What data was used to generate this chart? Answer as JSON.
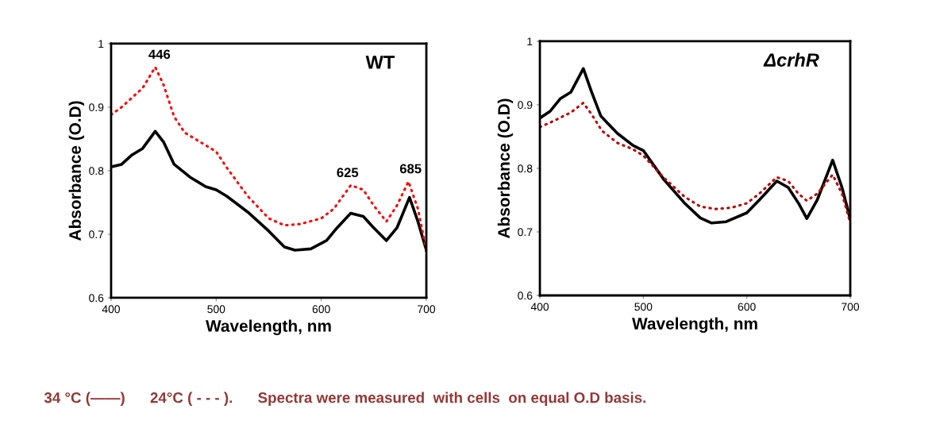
{
  "chart_data": [
    {
      "type": "line",
      "xlabel": "Wavelength, nm",
      "ylabel": "Absorbance (O.D)",
      "xlim": [
        400,
        700
      ],
      "xticks": [
        400,
        500,
        600,
        700
      ],
      "ylim": [
        0.6,
        1
      ],
      "yticks": [
        0.6,
        0.7,
        0.8,
        0.9,
        {
          "value": 1,
          "label": "1"
        }
      ],
      "grid": false,
      "legend": false,
      "marker": "none",
      "series": [
        {
          "color": "#000000",
          "line_style": "solid",
          "x": [
            400,
            410,
            420,
            430,
            442,
            450,
            460,
            475,
            490,
            500,
            510,
            530,
            550,
            565,
            575,
            590,
            605,
            615,
            628,
            640,
            650,
            662,
            672,
            684,
            692,
            700
          ],
          "values": [
            0.806,
            0.81,
            0.825,
            0.835,
            0.862,
            0.845,
            0.81,
            0.79,
            0.775,
            0.77,
            0.76,
            0.735,
            0.705,
            0.68,
            0.675,
            0.677,
            0.69,
            0.71,
            0.733,
            0.728,
            0.71,
            0.69,
            0.71,
            0.758,
            0.72,
            0.675
          ]
        },
        {
          "color": "#ff0000",
          "line_style": "dotted",
          "x": [
            400,
            410,
            420,
            430,
            442,
            450,
            460,
            470,
            490,
            500,
            510,
            530,
            550,
            565,
            580,
            600,
            612,
            628,
            640,
            650,
            662,
            672,
            683,
            692,
            700
          ],
          "values": [
            0.888,
            0.9,
            0.915,
            0.93,
            0.963,
            0.935,
            0.885,
            0.86,
            0.84,
            0.83,
            0.805,
            0.76,
            0.725,
            0.714,
            0.716,
            0.725,
            0.74,
            0.777,
            0.77,
            0.745,
            0.72,
            0.745,
            0.783,
            0.74,
            0.675
          ]
        }
      ],
      "annotations": [
        {
          "text": "446",
          "x": 446,
          "y": 0.963
        },
        {
          "text": "625",
          "x": 625,
          "y": 0.777
        },
        {
          "text": "685",
          "x": 685,
          "y": 0.783
        },
        "WT",
        "34 °C (——)      24°C ( - - - ).      Spectra were measured  with cells  on equal O.D basis."
      ]
    },
    {
      "type": "line",
      "xlabel": "Wavelength, nm",
      "ylabel": "Absorbance (O.D)",
      "xlim": [
        400,
        700
      ],
      "xticks": [
        400,
        500,
        600,
        700
      ],
      "ylim": [
        0.6,
        1
      ],
      "yticks": [
        0.6,
        0.7,
        0.8,
        0.9,
        {
          "value": 1,
          "label": "1"
        }
      ],
      "grid": false,
      "legend": false,
      "marker": "none",
      "series": [
        {
          "color": "#000000",
          "line_style": "solid",
          "x": [
            400,
            410,
            420,
            430,
            442,
            450,
            459,
            475,
            490,
            500,
            520,
            540,
            555,
            566,
            580,
            600,
            612,
            629,
            640,
            650,
            658,
            668,
            683,
            692,
            700
          ],
          "values": [
            0.879,
            0.89,
            0.91,
            0.92,
            0.957,
            0.92,
            0.882,
            0.855,
            0.836,
            0.828,
            0.782,
            0.745,
            0.722,
            0.714,
            0.716,
            0.73,
            0.75,
            0.78,
            0.77,
            0.745,
            0.721,
            0.75,
            0.813,
            0.77,
            0.72
          ]
        },
        {
          "color": "#c00000",
          "line_style": "dotted",
          "x": [
            400,
            410,
            420,
            430,
            442,
            450,
            460,
            475,
            490,
            500,
            520,
            540,
            555,
            570,
            585,
            600,
            612,
            629,
            640,
            650,
            658,
            668,
            683,
            692,
            700
          ],
          "values": [
            0.865,
            0.872,
            0.88,
            0.888,
            0.903,
            0.885,
            0.859,
            0.84,
            0.83,
            0.82,
            0.785,
            0.755,
            0.74,
            0.736,
            0.738,
            0.745,
            0.76,
            0.786,
            0.78,
            0.76,
            0.749,
            0.76,
            0.79,
            0.76,
            0.714
          ]
        }
      ],
      "annotations": [
        "ΔcrhR"
      ]
    }
  ]
}
